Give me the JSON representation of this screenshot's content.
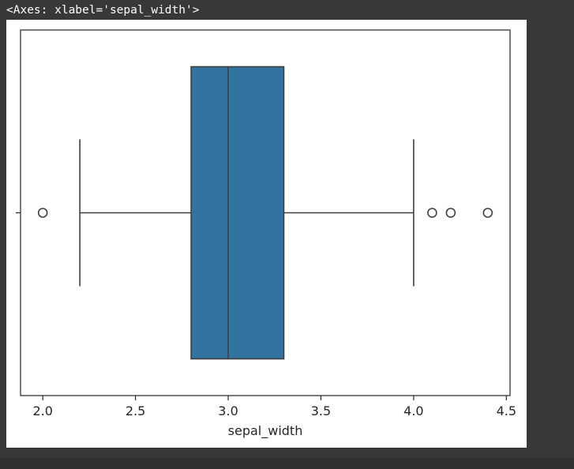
{
  "output": {
    "repr": "<Axes: xlabel='sepal_width'>"
  },
  "chart_data": {
    "type": "box",
    "orientation": "horizontal",
    "title": "",
    "xlabel": "sepal_width",
    "ylabel": "",
    "xlim": [
      1.88,
      4.52
    ],
    "xticks": [
      2.0,
      2.5,
      3.0,
      3.5,
      4.0,
      4.5
    ],
    "xtick_labels": [
      "2.0",
      "2.5",
      "3.0",
      "3.5",
      "4.0",
      "4.5"
    ],
    "grid": false,
    "box": {
      "whisker_low": 2.2,
      "q1": 2.8,
      "median": 3.0,
      "q3": 3.3,
      "whisker_high": 4.0,
      "outliers": [
        2.0,
        4.1,
        4.2,
        4.4
      ]
    },
    "colors": {
      "box_fill": "#3274a1",
      "line": "#3f3f3f",
      "axis": "#262626"
    }
  }
}
